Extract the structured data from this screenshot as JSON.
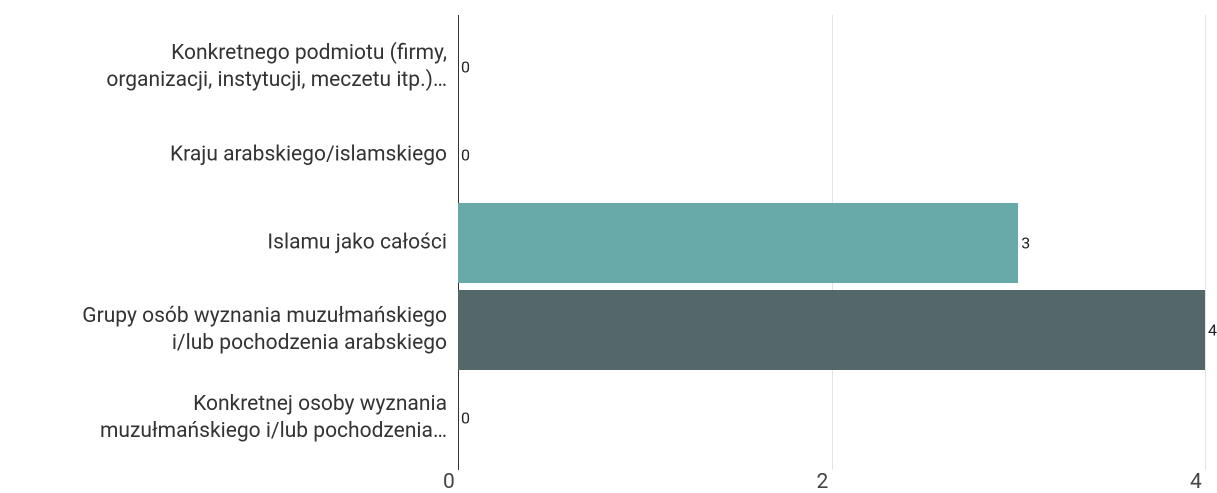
{
  "chart_data": {
    "type": "bar",
    "orientation": "horizontal",
    "categories": [
      "Konkretnego podmiotu (firmy,\norganizacji, instytucji, meczetu itp.)…",
      "Kraju arabskiego/islamskiego",
      "Islamu jako całości",
      "Grupy osób wyznania muzułmańskiego\ni/lub pochodzenia arabskiego",
      "Konkretnej osoby wyznania\nmuzułmańskiego i/lub pochodzenia…"
    ],
    "values": [
      0,
      0,
      3,
      4,
      0
    ],
    "colors": [
      "#8fb9b8",
      "#7c9c9b",
      "#67aaa9",
      "#546769",
      "#9fc3c2"
    ],
    "xlim": [
      0,
      4
    ],
    "xticks": [
      0,
      2,
      4
    ],
    "grid": true
  }
}
